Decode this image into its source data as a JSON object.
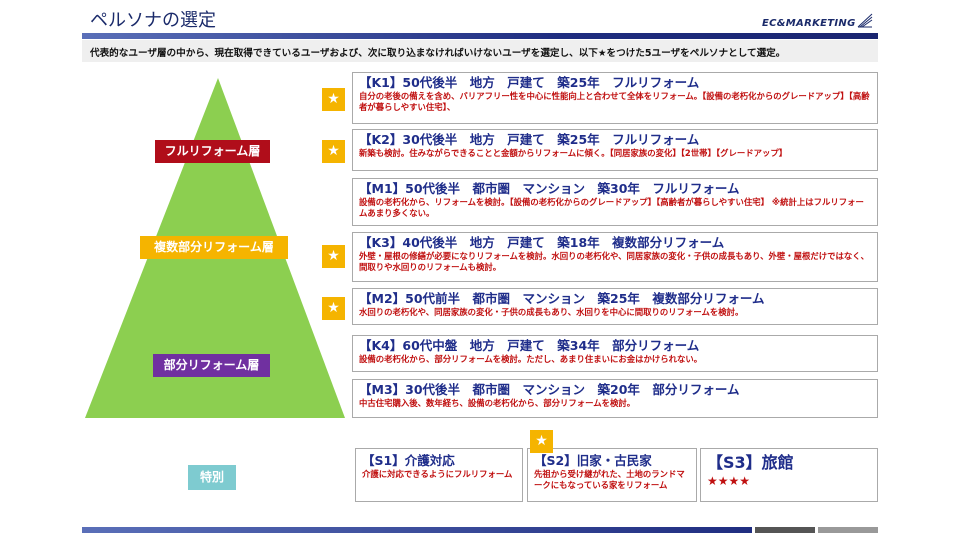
{
  "header": {
    "title": "ペルソナの選定",
    "logo": "EC&MARKETING",
    "subtitle": "代表的なユーザ層の中から、現在取得できているユーザおよび、次に取り込まなければいけないユーザを選定し、以下★をつけた5ユーザをペルソナとして選定。"
  },
  "pyramid": {
    "color": "#8ccf50",
    "layers": [
      {
        "label": "フルリフォーム層",
        "color": "#b00d1a"
      },
      {
        "label": "複数部分リフォーム層",
        "color": "#f5b400"
      },
      {
        "label": "部分リフォーム層",
        "color": "#7030a0"
      },
      {
        "label": "特別",
        "color": "#7ecbd0"
      }
    ]
  },
  "star_glyph": "★",
  "personas": [
    {
      "title": "【K1】50代後半　地方　戸建て　築25年　フルリフォーム",
      "desc": "自分の老後の備えを含め、バリアフリー性を中心に性能向上と合わせて全体をリフォーム。【設備の老朽化からのグレードアップ】【高齢者が暮らしやすい住宅】、",
      "starred": true
    },
    {
      "title": "【K2】30代後半　地方　戸建て　築25年　フルリフォーム",
      "desc": "新築も検討。住みながらできることと金額からリフォームに傾く。【同居家族の変化】【2世帯】【グレードアップ】",
      "starred": true
    },
    {
      "title": "【M1】50代後半　都市圏　マンション　築30年　フルリフォーム",
      "desc": "設備の老朽化から、リフォームを検討。【設備の老朽化からのグレードアップ】【高齢者が暮らしやすい住宅】 ※統計上はフルリフォームあまり多くない。",
      "starred": false
    },
    {
      "title": "【K3】40代後半　地方　戸建て　築18年　複数部分リフォーム",
      "desc": "外壁・屋根の修繕が必要になりリフォームを検討。水回りの老朽化や、同居家族の変化・子供の成長もあり、外壁・屋根だけではなく、間取りや水回りのリフォームも検討。",
      "starred": true
    },
    {
      "title": "【M2】50代前半　都市圏　マンション　築25年　複数部分リフォーム",
      "desc": "水回りの老朽化や、同居家族の変化・子供の成長もあり、水回りを中心に間取りのリフォームを検討。",
      "starred": true
    },
    {
      "title": "【K4】60代中盤　地方　戸建て　築34年　部分リフォーム",
      "desc": "設備の老朽化から、部分リフォームを検討。ただし、あまり住まいにお金はかけられない。",
      "starred": false
    },
    {
      "title": "【M3】30代後半　都市圏　マンション　築20年　部分リフォーム",
      "desc": "中古住宅購入後、数年経ち、設備の老朽化から、部分リフォームを検討。",
      "starred": false
    }
  ],
  "special": [
    {
      "title": "【S1】介護対応",
      "desc": "介護に対応できるようにフルリフォーム",
      "starred": false
    },
    {
      "title": "【S2】旧家・古民家",
      "desc": "先祖から受け継がれた、土地のランドマークにもなっている家をリフォーム",
      "starred": true
    },
    {
      "title": "【S3】旅館",
      "desc": "★★★★",
      "starred": false
    }
  ]
}
